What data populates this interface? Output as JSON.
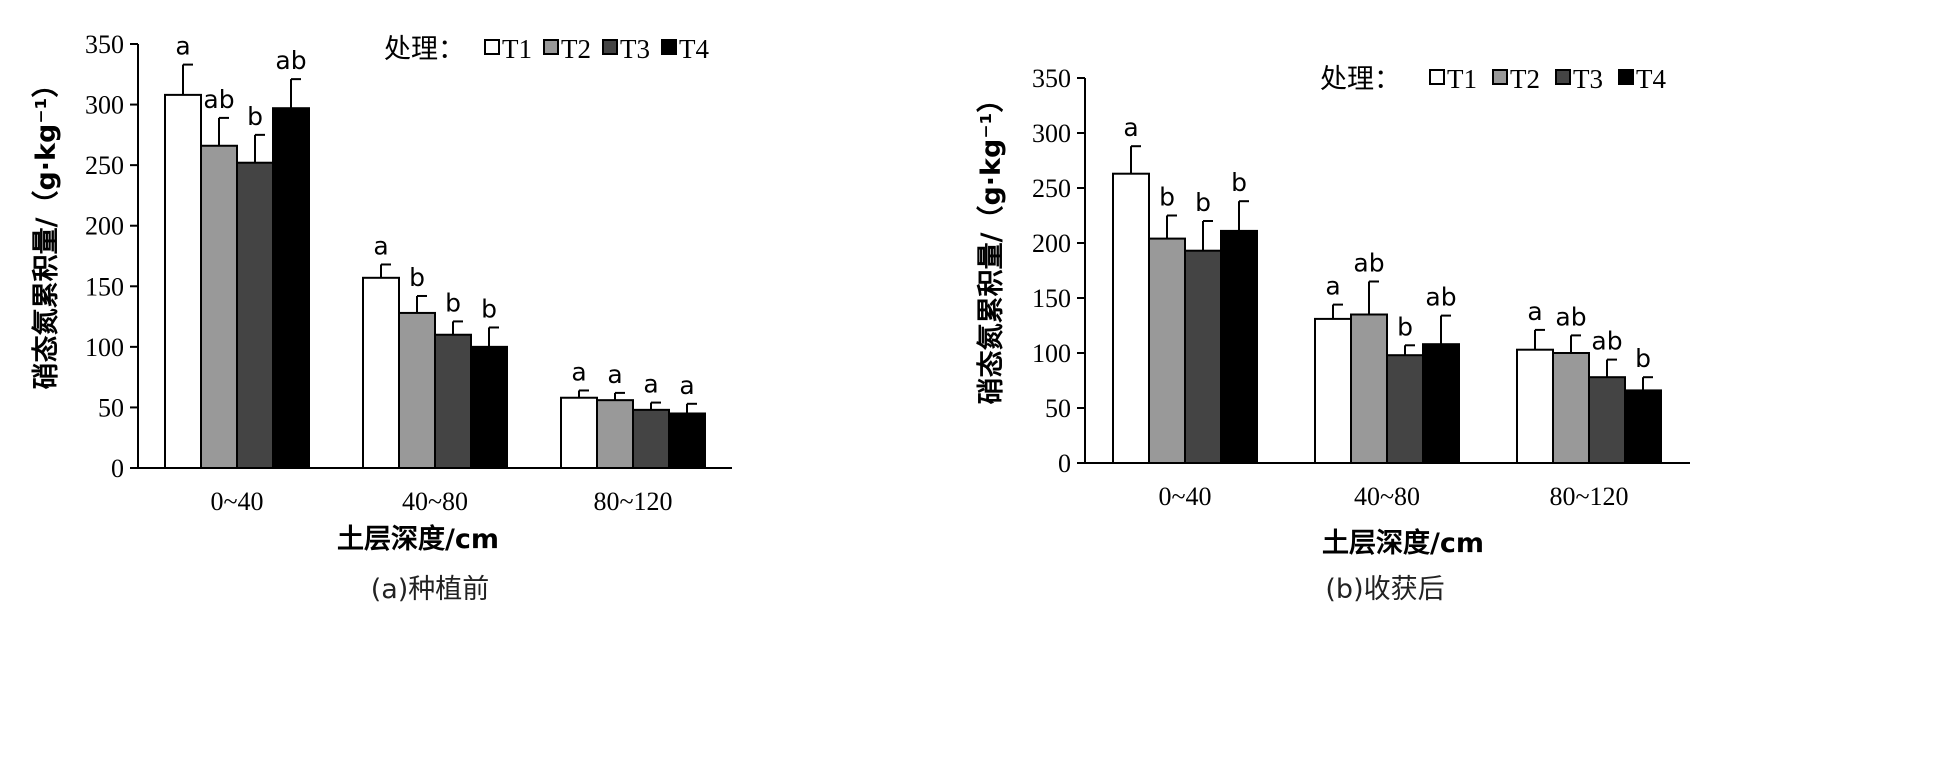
{
  "colors": {
    "T1": "#ffffff",
    "T2": "#999999",
    "T3": "#444444",
    "T4": "#000000"
  },
  "chart_data": [
    {
      "type": "bar",
      "caption": "(a)种植前",
      "xlabel": "土层深度/cm",
      "ylabel": "硝态氮累积量/（g·kg⁻¹）",
      "ylim": [
        0,
        350
      ],
      "yticks": [
        0,
        50,
        100,
        150,
        200,
        250,
        300,
        350
      ],
      "grid": false,
      "legend_title": "处理：",
      "legend_position": "top-right",
      "categories": [
        "0~40",
        "40~80",
        "80~120"
      ],
      "series": [
        {
          "name": "T1",
          "values": [
            308,
            157,
            58
          ],
          "errors": [
            25,
            11,
            6
          ],
          "sig": [
            "a",
            "a",
            "a"
          ]
        },
        {
          "name": "T2",
          "values": [
            266,
            128,
            56
          ],
          "errors": [
            23,
            14,
            6
          ],
          "sig": [
            "ab",
            "b",
            "a"
          ]
        },
        {
          "name": "T3",
          "values": [
            252,
            110,
            48
          ],
          "errors": [
            23,
            11,
            6
          ],
          "sig": [
            "b",
            "b",
            "a"
          ]
        },
        {
          "name": "T4",
          "values": [
            297,
            100,
            45
          ],
          "errors": [
            24,
            16,
            8
          ],
          "sig": [
            "ab",
            "b",
            "a"
          ]
        }
      ]
    },
    {
      "type": "bar",
      "caption": "(b)收获后",
      "xlabel": "土层深度/cm",
      "ylabel": "硝态氮累积量/（g·kg⁻¹）",
      "ylim": [
        0,
        350
      ],
      "yticks": [
        0,
        50,
        100,
        150,
        200,
        250,
        300,
        350
      ],
      "grid": false,
      "legend_title": "处理：",
      "legend_position": "top-right",
      "categories": [
        "0~40",
        "40~80",
        "80~120"
      ],
      "series": [
        {
          "name": "T1",
          "values": [
            263,
            131,
            103
          ],
          "errors": [
            25,
            13,
            18
          ],
          "sig": [
            "a",
            "a",
            "a"
          ]
        },
        {
          "name": "T2",
          "values": [
            204,
            135,
            100
          ],
          "errors": [
            21,
            30,
            16
          ],
          "sig": [
            "b",
            "ab",
            "ab"
          ]
        },
        {
          "name": "T3",
          "values": [
            193,
            98,
            78
          ],
          "errors": [
            27,
            9,
            16
          ],
          "sig": [
            "b",
            "b",
            "ab"
          ]
        },
        {
          "name": "T4",
          "values": [
            211,
            108,
            66
          ],
          "errors": [
            27,
            26,
            12
          ],
          "sig": [
            "b",
            "ab",
            "b"
          ]
        }
      ]
    }
  ]
}
